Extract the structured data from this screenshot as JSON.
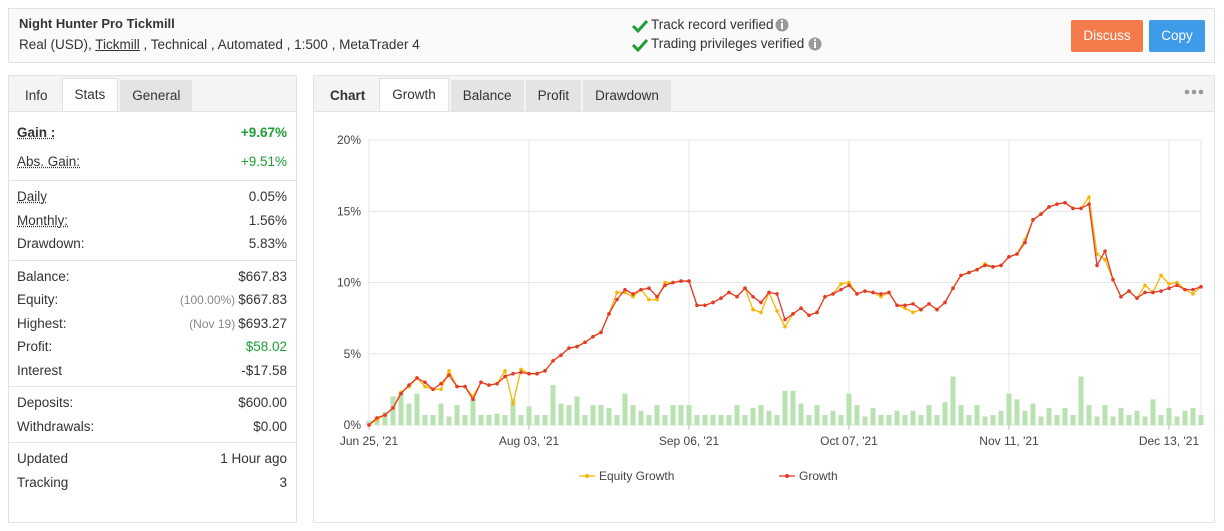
{
  "header": {
    "title": "Night Hunter Pro Tickmill",
    "account": "Real (USD),",
    "broker": "Tickmill",
    "details": ", Technical , Automated , 1:500 , MetaTrader 4",
    "verified": [
      "Track record verified",
      "Trading privileges verified"
    ],
    "buttons": [
      "Discuss",
      "Copy"
    ]
  },
  "stats_tabs": [
    "Info",
    "Stats",
    "General"
  ],
  "stats": [
    [
      {
        "label": "Gain :",
        "value": "+9.67%",
        "dotted": true,
        "bold": true,
        "color": "#1e9e36"
      },
      {
        "label": "Abs. Gain:",
        "value": "+9.51%",
        "dotted": true,
        "color": "#1e9e36"
      }
    ],
    [
      {
        "label": "Daily",
        "value": "0.05%",
        "dotted": true
      },
      {
        "label": "Monthly:",
        "value": "1.56%",
        "dotted": true
      },
      {
        "label": "Drawdown:",
        "value": "5.83%"
      }
    ],
    [
      {
        "label": "Balance:",
        "value": "$667.83"
      },
      {
        "label": "Equity:",
        "note": "(100.00%)",
        "value": "$667.83"
      },
      {
        "label": "Highest:",
        "note": "(Nov 19)",
        "value": "$693.27"
      },
      {
        "label": "Profit:",
        "value": "$58.02",
        "color": "#1e9e36"
      },
      {
        "label": "Interest",
        "value": "-$17.58"
      }
    ],
    [
      {
        "label": "Deposits:",
        "value": "$600.00"
      },
      {
        "label": "Withdrawals:",
        "value": "$0.00"
      }
    ],
    [
      {
        "label": "Updated",
        "value": "1 Hour ago"
      },
      {
        "label": "Tracking",
        "value": "3"
      }
    ]
  ],
  "chart_tabs": [
    "Chart",
    "Growth",
    "Balance",
    "Profit",
    "Drawdown"
  ],
  "chart_data": {
    "type": "line",
    "ylim": [
      0,
      20
    ],
    "yticks": [
      {
        "value": 0,
        "label": "0%"
      },
      {
        "value": 5,
        "label": "5%"
      },
      {
        "value": 10,
        "label": "10%"
      },
      {
        "value": 15,
        "label": "15%"
      },
      {
        "value": 20,
        "label": "20%"
      }
    ],
    "grid": true,
    "categories": [
      "Jun 25, '21",
      null,
      null,
      null,
      null,
      null,
      null,
      null,
      null,
      null,
      null,
      null,
      null,
      null,
      null,
      null,
      null,
      null,
      null,
      null,
      "Aug 03, '21",
      null,
      null,
      null,
      null,
      null,
      null,
      null,
      null,
      null,
      null,
      null,
      null,
      null,
      null,
      null,
      null,
      null,
      null,
      null,
      "Sep 06, '21",
      null,
      null,
      null,
      null,
      null,
      null,
      null,
      null,
      null,
      null,
      null,
      null,
      null,
      null,
      null,
      null,
      null,
      null,
      null,
      "Oct 07, '21",
      null,
      null,
      null,
      null,
      null,
      null,
      null,
      null,
      null,
      null,
      null,
      null,
      null,
      null,
      null,
      null,
      null,
      null,
      null,
      "Nov 11, '21",
      null,
      null,
      null,
      null,
      null,
      null,
      null,
      null,
      null,
      null,
      null,
      null,
      null,
      null,
      null,
      null,
      null,
      null,
      null,
      "Dec 13, '21",
      null,
      null,
      null,
      null
    ],
    "bars": {
      "color": "#b9e2b2",
      "values": [
        0.3,
        0.6,
        0.9,
        2.0,
        2.3,
        1.5,
        2.2,
        0.7,
        0.7,
        1.5,
        0.6,
        1.4,
        0.7,
        1.9,
        0.7,
        0.7,
        0.8,
        0.7,
        1.8,
        0.7,
        1.3,
        0.7,
        0.7,
        2.8,
        1.5,
        1.4,
        2.0,
        0.7,
        1.4,
        1.4,
        1.2,
        0.7,
        2.2,
        1.4,
        1.0,
        0.7,
        1.4,
        0.7,
        1.4,
        1.4,
        1.4,
        0.7,
        0.7,
        0.7,
        0.7,
        0.7,
        1.4,
        0.7,
        1.2,
        1.4,
        1.0,
        0.7,
        2.4,
        2.4,
        1.5,
        0.7,
        1.4,
        0.7,
        1.0,
        0.7,
        2.2,
        1.4,
        0.6,
        1.2,
        0.7,
        0.7,
        1.0,
        0.7,
        1.0,
        0.7,
        1.4,
        0.7,
        1.6,
        3.4,
        1.4,
        0.7,
        1.4,
        0.6,
        0.7,
        1.0,
        2.2,
        1.8,
        1.0,
        1.5,
        0.6,
        1.2,
        0.7,
        1.2,
        0.7,
        3.4,
        1.4,
        0.6,
        1.4,
        0.6,
        1.2,
        0.7,
        1.0,
        0.6,
        1.8,
        0.7,
        1.2,
        0.6,
        1.0,
        1.2,
        0.7
      ]
    },
    "series": [
      {
        "name": "Equity Growth",
        "color": "#f7b500",
        "values": [
          0,
          0.4,
          0.7,
          1.2,
          2.3,
          2.7,
          3.3,
          2.7,
          2.5,
          2.5,
          3.8,
          2.7,
          2.7,
          2.0,
          3.0,
          2.8,
          2.9,
          3.8,
          1.5,
          3.9,
          3.6,
          3.6,
          3.8,
          4.5,
          4.9,
          5.4,
          5.5,
          5.8,
          6.2,
          6.5,
          7.8,
          9.3,
          9.3,
          9.0,
          9.5,
          8.8,
          8.8,
          10.0,
          10.0,
          10.1,
          10.1,
          8.4,
          8.4,
          8.6,
          8.9,
          9.3,
          9.0,
          9.6,
          8.1,
          7.9,
          9.3,
          8.0,
          6.9,
          7.8,
          8.2,
          7.7,
          7.9,
          9.0,
          9.2,
          9.9,
          10.0,
          9.2,
          9.4,
          9.3,
          9.0,
          9.3,
          8.4,
          8.2,
          7.9,
          8.1,
          8.5,
          8.1,
          8.6,
          9.6,
          10.5,
          10.7,
          10.9,
          11.3,
          11.1,
          11.2,
          11.8,
          12.0,
          13.0,
          14.4,
          14.8,
          15.3,
          15.5,
          15.6,
          15.2,
          15.2,
          16.0,
          12.0,
          11.6,
          10.2,
          9.0,
          9.4,
          8.9,
          9.8,
          9.3,
          10.5,
          9.9,
          10.0,
          9.5,
          9.2,
          9.7
        ]
      },
      {
        "name": "Growth",
        "color": "#e53a2a",
        "values": [
          0,
          0.5,
          0.7,
          1.2,
          2.2,
          2.8,
          3.3,
          3.0,
          2.5,
          2.9,
          3.5,
          2.7,
          2.7,
          1.8,
          3.0,
          2.8,
          2.9,
          3.4,
          3.6,
          3.7,
          3.6,
          3.6,
          3.8,
          4.5,
          4.9,
          5.4,
          5.5,
          5.8,
          6.2,
          6.5,
          7.8,
          8.8,
          9.5,
          9.2,
          9.5,
          9.6,
          9.0,
          9.8,
          10.0,
          10.1,
          10.1,
          8.4,
          8.4,
          8.6,
          8.9,
          9.3,
          9.0,
          9.6,
          9.0,
          8.6,
          9.3,
          9.2,
          7.4,
          7.8,
          8.2,
          7.7,
          7.9,
          9.0,
          9.2,
          9.5,
          9.8,
          9.2,
          9.4,
          9.3,
          9.2,
          9.3,
          8.4,
          8.4,
          8.5,
          8.1,
          8.5,
          8.1,
          8.6,
          9.6,
          10.5,
          10.7,
          10.9,
          11.2,
          11.1,
          11.2,
          11.8,
          12.0,
          12.8,
          14.4,
          14.8,
          15.3,
          15.5,
          15.6,
          15.2,
          15.2,
          15.5,
          11.2,
          12.2,
          10.2,
          9.0,
          9.4,
          8.9,
          9.3,
          9.3,
          9.4,
          9.6,
          9.8,
          9.5,
          9.5,
          9.7
        ]
      }
    ]
  }
}
